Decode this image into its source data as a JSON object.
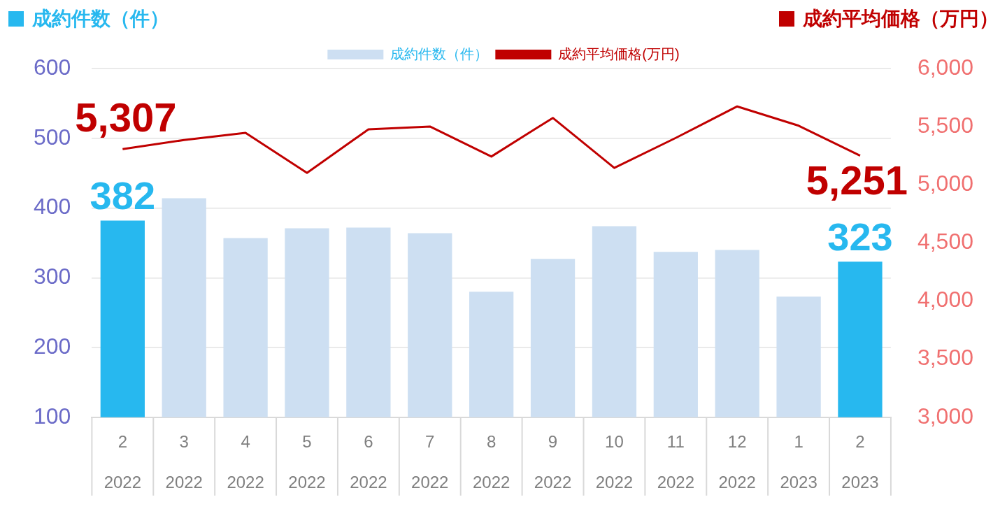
{
  "chart_data": {
    "type": "bar",
    "ylabel": "成約件数（件）",
    "y2label": "成約平均価格（万円）",
    "categories": [
      "2\n2022",
      "3\n2022",
      "4\n2022",
      "5\n2022",
      "6\n2022",
      "7\n2022",
      "8\n2022",
      "9\n2022",
      "10\n2022",
      "11\n2022",
      "12\n2022",
      "1\n2023",
      "2\n2023"
    ],
    "series": [
      {
        "name": "成約件数（件）",
        "color": "#cddff2",
        "colors": [
          "#27b8ef",
          "#cddff2",
          "#cddff2",
          "#cddff2",
          "#cddff2",
          "#cddff2",
          "#cddff2",
          "#cddff2",
          "#cddff2",
          "#cddff2",
          "#cddff2",
          "#cddff2",
          "#27b8ef"
        ],
        "values": [
          382,
          414,
          357,
          371,
          372,
          364,
          280,
          327,
          374,
          337,
          340,
          273,
          323
        ],
        "value_labels": [
          "382",
          null,
          null,
          null,
          null,
          null,
          null,
          null,
          null,
          null,
          null,
          null,
          "323"
        ]
      },
      {
        "name": "成約平均価格(万円)",
        "type": "line",
        "axis": "y2",
        "color": "#c00000",
        "values": [
          5307,
          5385,
          5446,
          5102,
          5477,
          5501,
          5243,
          5575,
          5145,
          5403,
          5674,
          5508,
          5251
        ],
        "value_labels": [
          "5,307",
          null,
          null,
          null,
          null,
          null,
          null,
          null,
          null,
          null,
          null,
          null,
          "5,251"
        ]
      }
    ],
    "ylim": [
      100,
      600
    ],
    "yticks": [
      100,
      200,
      300,
      400,
      500,
      600
    ],
    "y2lim": [
      3000,
      6000
    ],
    "y2ticks": [
      {
        "value": 3000,
        "label": "3,000"
      },
      {
        "value": 3500,
        "label": "3,500"
      },
      {
        "value": 4000,
        "label": "4,000"
      },
      {
        "value": 4500,
        "label": "4,500"
      },
      {
        "value": 5000,
        "label": "5,000"
      },
      {
        "value": 5500,
        "label": "5,500"
      },
      {
        "value": 6000,
        "label": "6,000"
      }
    ],
    "grid": "y",
    "legend": "top",
    "marker": "none"
  }
}
